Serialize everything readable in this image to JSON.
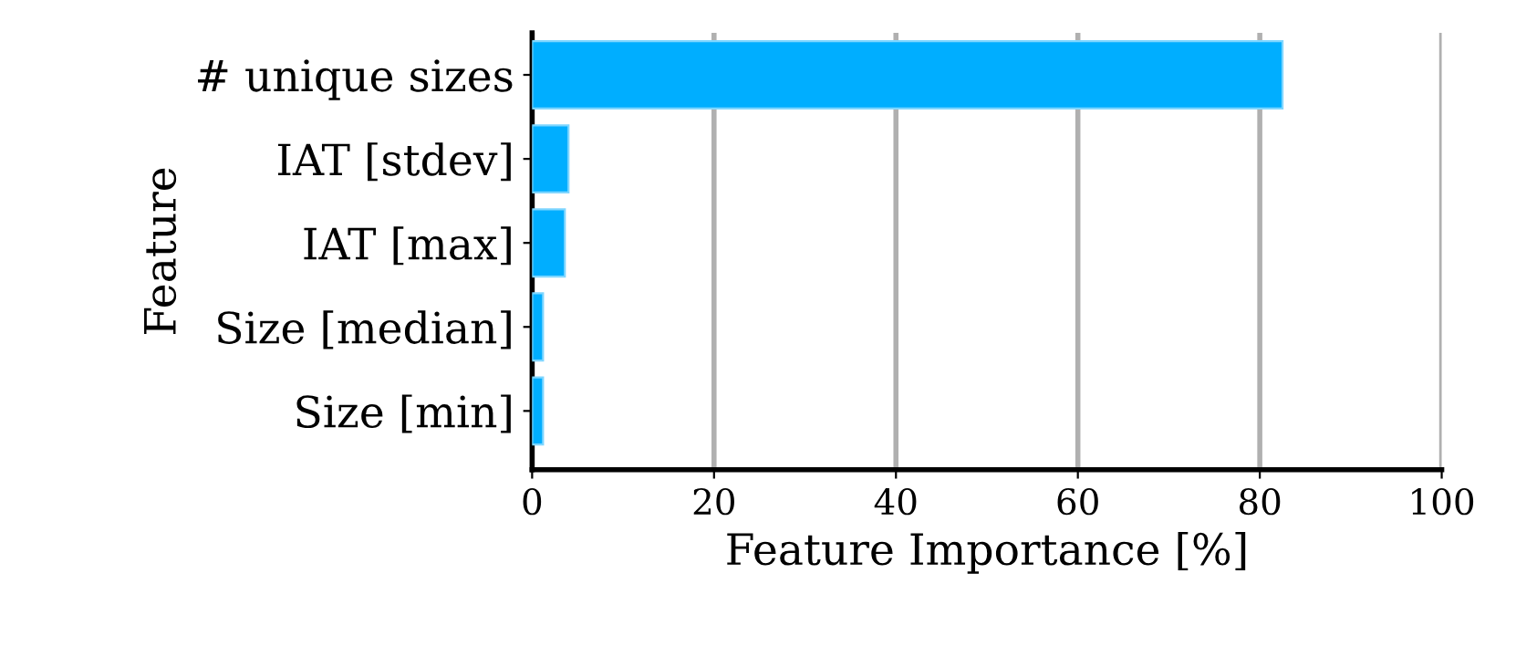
{
  "chart_data": {
    "type": "bar",
    "orientation": "horizontal",
    "xlabel": "Feature Importance [%]",
    "ylabel": "Feature",
    "categories": [
      "# unique sizes",
      "IAT [stdev]",
      "IAT [max]",
      "Size [median]",
      "Size [min]"
    ],
    "values": [
      82.5,
      4.0,
      3.6,
      1.2,
      1.2
    ],
    "color": "#00aeff",
    "xlim": [
      0,
      100
    ],
    "xticks": [
      0,
      20,
      40,
      60,
      80,
      100
    ],
    "grid": "x"
  }
}
